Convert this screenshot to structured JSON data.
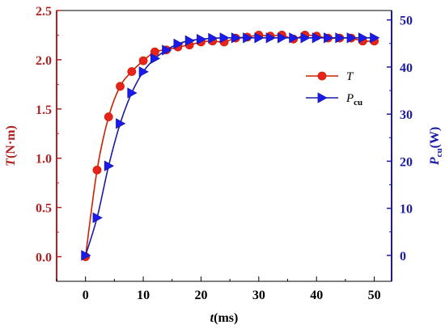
{
  "chart_data": {
    "type": "line",
    "x_axis": {
      "label_italic": "t",
      "label_rest": "(ms)",
      "lim": [
        -5,
        53
      ],
      "ticks": [
        0,
        10,
        20,
        30,
        40,
        50
      ]
    },
    "y_left": {
      "label_italic": "T",
      "label_rest": "(N·m)",
      "lim": [
        -0.25,
        2.5
      ],
      "ticks": [
        "0.0",
        "0.5",
        "1.0",
        "1.5",
        "2.0",
        "2.5"
      ],
      "color": "#b22222"
    },
    "y_right": {
      "label_italic": "P",
      "label_sub": "cu",
      "label_rest": "(W)",
      "lim": [
        -5.5,
        52
      ],
      "ticks": [
        0,
        10,
        20,
        30,
        40,
        50
      ],
      "color": "#1a1aa6"
    },
    "series": [
      {
        "name": "T",
        "axis": "left",
        "color": "#cc2200",
        "marker_color": "#e8231e",
        "marker": "circle",
        "x": [
          0,
          2,
          4,
          6,
          8,
          10,
          12,
          14,
          16,
          18,
          20,
          22,
          24,
          26,
          28,
          30,
          32,
          34,
          36,
          38,
          40,
          42,
          44,
          46,
          48,
          50
        ],
        "y": [
          0.0,
          0.88,
          1.42,
          1.73,
          1.88,
          1.99,
          2.08,
          2.1,
          2.13,
          2.15,
          2.18,
          2.19,
          2.18,
          2.22,
          2.23,
          2.25,
          2.24,
          2.25,
          2.21,
          2.25,
          2.24,
          2.22,
          2.22,
          2.22,
          2.19,
          2.19
        ]
      },
      {
        "name": "P",
        "name_sub": "cu",
        "axis": "right",
        "color": "#1a1aa6",
        "marker_color": "#1a1aee",
        "marker": "triangle-right",
        "x": [
          0,
          2,
          4,
          6,
          8,
          10,
          12,
          14,
          16,
          18,
          20,
          22,
          24,
          26,
          28,
          30,
          32,
          34,
          36,
          38,
          40,
          42,
          44,
          46,
          48,
          50
        ],
        "y": [
          0,
          8,
          19,
          28,
          34.5,
          39,
          41.8,
          43.6,
          44.9,
          45.6,
          45.9,
          46.1,
          46.2,
          46.2,
          46.2,
          46.2,
          46.2,
          46.2,
          46.2,
          46.2,
          46.2,
          46.2,
          46.2,
          46.2,
          46.2,
          46.2
        ]
      }
    ],
    "legend_position": "right-middle"
  }
}
